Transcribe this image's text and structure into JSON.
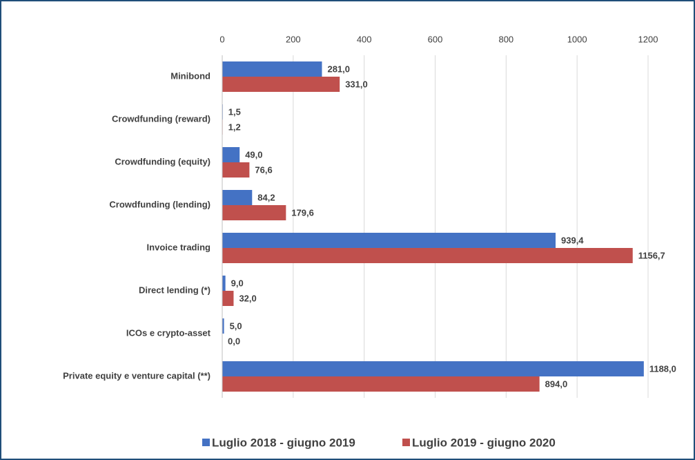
{
  "chart_data": {
    "type": "hbar",
    "categories": [
      "Minibond",
      "Crowdfunding (reward)",
      "Crowdfunding (equity)",
      "Crowdfunding (lending)",
      "Invoice trading",
      "Direct lending (*)",
      "ICOs e crypto-asset",
      "Private equity e venture capital (**)"
    ],
    "series": [
      {
        "name": "Luglio 2018 - giugno 2019",
        "color": "#4472c4",
        "values": [
          281.0,
          1.5,
          49.0,
          84.2,
          939.4,
          9.0,
          5.0,
          1188.0
        ],
        "value_labels": [
          "281,0",
          "1,5",
          "49,0",
          "84,2",
          "939,4",
          "9,0",
          "5,0",
          "1188,0"
        ]
      },
      {
        "name": "Luglio 2019 - giugno 2020",
        "color": "#c0504d",
        "values": [
          331.0,
          1.2,
          76.6,
          179.6,
          1156.7,
          32.0,
          0.0,
          894.0
        ],
        "value_labels": [
          "331,0",
          "1,2",
          "76,6",
          "179,6",
          "1156,7",
          "32,0",
          "0,0",
          "894,0"
        ]
      }
    ],
    "xlim": [
      0,
      1200
    ],
    "xticks": [
      0,
      200,
      400,
      600,
      800,
      1000,
      1200
    ],
    "grid": true,
    "legend": "bottom"
  }
}
